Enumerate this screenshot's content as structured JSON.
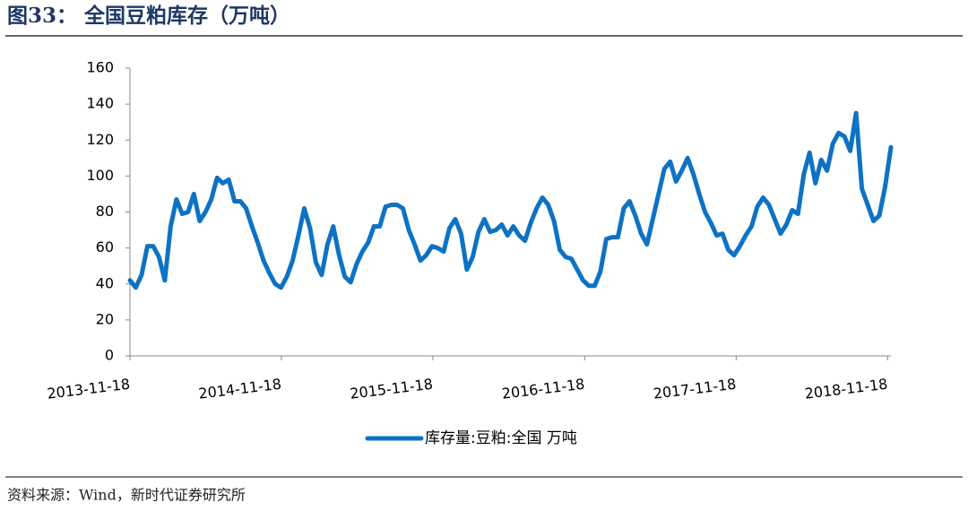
{
  "chart_data": {
    "type": "line",
    "title": "图33：  全国豆粕库存（万吨）",
    "source": "资料来源：Wind，新时代证券研究所",
    "x": [
      "2013-11-18",
      "2013-12-02",
      "2013-12-16",
      "2013-12-30",
      "2014-01-13",
      "2014-01-27",
      "2014-02-10",
      "2014-02-24",
      "2014-03-10",
      "2014-03-24",
      "2014-04-07",
      "2014-04-21",
      "2014-05-05",
      "2014-05-19",
      "2014-06-02",
      "2014-06-16",
      "2014-06-30",
      "2014-07-14",
      "2014-07-28",
      "2014-08-11",
      "2014-08-25",
      "2014-09-08",
      "2014-09-22",
      "2014-10-06",
      "2014-10-20",
      "2014-11-03",
      "2014-11-17",
      "2014-12-01",
      "2014-12-15",
      "2014-12-29",
      "2015-01-12",
      "2015-01-26",
      "2015-02-09",
      "2015-02-23",
      "2015-03-09",
      "2015-03-23",
      "2015-04-06",
      "2015-04-20",
      "2015-05-04",
      "2015-05-18",
      "2015-06-01",
      "2015-06-15",
      "2015-06-29",
      "2015-07-13",
      "2015-07-27",
      "2015-08-10",
      "2015-08-24",
      "2015-09-07",
      "2015-09-21",
      "2015-10-05",
      "2015-10-19",
      "2015-11-02",
      "2015-11-16",
      "2015-11-30",
      "2015-12-14",
      "2015-12-28",
      "2016-01-11",
      "2016-01-25",
      "2016-02-08",
      "2016-02-22",
      "2016-03-07",
      "2016-03-21",
      "2016-04-04",
      "2016-04-18",
      "2016-05-02",
      "2016-05-16",
      "2016-05-30",
      "2016-06-13",
      "2016-06-27",
      "2016-07-11",
      "2016-07-25",
      "2016-08-08",
      "2016-08-22",
      "2016-09-05",
      "2016-09-19",
      "2016-10-03",
      "2016-10-17",
      "2016-10-31",
      "2016-11-14",
      "2016-11-28",
      "2016-12-12",
      "2016-12-26",
      "2017-01-09",
      "2017-01-23",
      "2017-02-06",
      "2017-02-20",
      "2017-03-06",
      "2017-03-20",
      "2017-04-03",
      "2017-04-17",
      "2017-05-01",
      "2017-05-15",
      "2017-05-29",
      "2017-06-12",
      "2017-06-26",
      "2017-07-10",
      "2017-07-24",
      "2017-08-07",
      "2017-08-21",
      "2017-09-04",
      "2017-09-18",
      "2017-10-02",
      "2017-10-16",
      "2017-10-30",
      "2017-11-13",
      "2017-11-27",
      "2017-12-11",
      "2017-12-25",
      "2018-01-08",
      "2018-01-22",
      "2018-02-05",
      "2018-02-19",
      "2018-03-05",
      "2018-03-19",
      "2018-04-02",
      "2018-04-16",
      "2018-04-30",
      "2018-05-14",
      "2018-05-28",
      "2018-06-11",
      "2018-06-25",
      "2018-07-09",
      "2018-07-23",
      "2018-08-06",
      "2018-08-20",
      "2018-09-03",
      "2018-09-17",
      "2018-10-01",
      "2018-10-15",
      "2018-10-29",
      "2018-11-12",
      "2018-11-26"
    ],
    "series": [
      {
        "name": "库存量:豆粕:全国 万吨",
        "color": "#0e72c4",
        "values": [
          42,
          38,
          45,
          61,
          61,
          55,
          42,
          72,
          87,
          79,
          80,
          90,
          75,
          80,
          87,
          99,
          96,
          98,
          86,
          86,
          82,
          72,
          63,
          53,
          46,
          40,
          38,
          44,
          53,
          67,
          82,
          71,
          52,
          45,
          62,
          72,
          56,
          44,
          41,
          51,
          58,
          63,
          72,
          72,
          83,
          84,
          84,
          82,
          70,
          62,
          53,
          56,
          61,
          60,
          58,
          71,
          76,
          68,
          48,
          55,
          69,
          76,
          69,
          70,
          73,
          67,
          72,
          67,
          64,
          74,
          82,
          88,
          84,
          75,
          59,
          55,
          54,
          48,
          42,
          39,
          39,
          47,
          65,
          66,
          66,
          82,
          86,
          78,
          68,
          62,
          76,
          90,
          104,
          108,
          97,
          103,
          110,
          101,
          90,
          80,
          74,
          67,
          68,
          59,
          56,
          61,
          67,
          72,
          83,
          88,
          84,
          76,
          68,
          73,
          81,
          79,
          101,
          113,
          96,
          109,
          103,
          118,
          124,
          122,
          114,
          135,
          93,
          84,
          75,
          78,
          94,
          116
        ]
      }
    ],
    "xlim": [
      "2013-11-18",
      "2018-11-26"
    ],
    "xticks": [
      "2013-11-18",
      "2014-11-18",
      "2015-11-18",
      "2016-11-18",
      "2017-11-18",
      "2018-11-18"
    ],
    "ylim": [
      0,
      160
    ],
    "yticks": [
      0,
      20,
      40,
      60,
      80,
      100,
      120,
      140,
      160
    ],
    "grid": false,
    "legend": "bottom"
  }
}
